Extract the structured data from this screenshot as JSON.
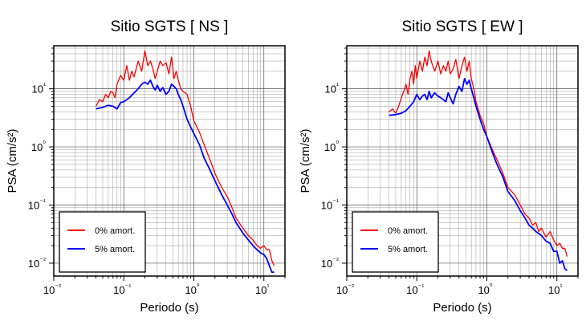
{
  "chart_data": [
    {
      "type": "line",
      "title": "Sitio SGTS [ NS ]",
      "xlabel": "Periodo (s)",
      "ylabel": "PSA (cm/s²)",
      "xscale": "log",
      "yscale": "log",
      "xlim": [
        0.01,
        20
      ],
      "ylim": [
        0.006,
        55
      ],
      "grid": true,
      "legend_position": "bottom-left",
      "x_tick_labels": [
        "10⁻²",
        "10⁻¹",
        "10⁰",
        "10¹"
      ],
      "y_tick_labels": [
        "10⁻²",
        "10⁻¹",
        "10⁰",
        "10¹"
      ],
      "series": [
        {
          "name": "0% amort.",
          "color": "#ff0000",
          "x": [
            0.04,
            0.045,
            0.05,
            0.055,
            0.06,
            0.065,
            0.07,
            0.075,
            0.08,
            0.09,
            0.1,
            0.11,
            0.12,
            0.13,
            0.14,
            0.15,
            0.16,
            0.18,
            0.2,
            0.22,
            0.24,
            0.26,
            0.28,
            0.3,
            0.33,
            0.36,
            0.4,
            0.44,
            0.48,
            0.52,
            0.56,
            0.6,
            0.65,
            0.7,
            0.8,
            0.9,
            1.0,
            1.2,
            1.4,
            1.7,
            2.0,
            2.5,
            3.0,
            3.5,
            4.0,
            5.0,
            6.0,
            7.0,
            8.0,
            9.0,
            10.0,
            11.0,
            12.0,
            13.0,
            14.0
          ],
          "y": [
            5.0,
            6.5,
            6.0,
            8.0,
            7.0,
            9.0,
            8.5,
            7.0,
            12.0,
            17.0,
            14.0,
            25.0,
            14.0,
            20.0,
            16.0,
            22.0,
            30.0,
            20.0,
            45.0,
            25.0,
            30.0,
            22.0,
            15.0,
            20.0,
            30.0,
            25.0,
            28.0,
            18.0,
            35.0,
            15.0,
            20.0,
            14.0,
            10.0,
            9.0,
            8.0,
            5.0,
            2.8,
            1.8,
            1.1,
            0.6,
            0.35,
            0.2,
            0.14,
            0.09,
            0.06,
            0.04,
            0.03,
            0.025,
            0.02,
            0.018,
            0.02,
            0.017,
            0.017,
            0.011,
            0.009
          ]
        },
        {
          "name": "5% amort.",
          "color": "#0000ff",
          "x": [
            0.04,
            0.05,
            0.06,
            0.07,
            0.08,
            0.09,
            0.1,
            0.12,
            0.14,
            0.16,
            0.18,
            0.2,
            0.22,
            0.24,
            0.26,
            0.28,
            0.3,
            0.33,
            0.36,
            0.4,
            0.44,
            0.48,
            0.52,
            0.56,
            0.6,
            0.65,
            0.7,
            0.8,
            0.9,
            1.0,
            1.2,
            1.4,
            1.7,
            2.0,
            2.5,
            3.0,
            3.5,
            4.0,
            5.0,
            6.0,
            7.0,
            8.0,
            9.0,
            10.0,
            11.0,
            12.0,
            13.0,
            14.0
          ],
          "y": [
            4.5,
            4.8,
            5.2,
            5.0,
            4.5,
            5.8,
            6.0,
            7.0,
            8.5,
            10.0,
            12.0,
            13.0,
            12.0,
            14.0,
            11.0,
            9.5,
            11.5,
            9.0,
            10.5,
            8.0,
            9.0,
            12.0,
            11.0,
            10.0,
            8.0,
            6.5,
            5.0,
            3.0,
            2.2,
            1.7,
            1.1,
            0.65,
            0.4,
            0.26,
            0.15,
            0.1,
            0.07,
            0.05,
            0.033,
            0.025,
            0.02,
            0.017,
            0.015,
            0.014,
            0.012,
            0.009,
            0.007,
            0.007
          ]
        }
      ]
    },
    {
      "type": "line",
      "title": "Sitio SGTS [ EW ]",
      "xlabel": "Periodo (s)",
      "ylabel": "PSA (cm/s²)",
      "xscale": "log",
      "yscale": "log",
      "xlim": [
        0.01,
        20
      ],
      "ylim": [
        0.006,
        55
      ],
      "grid": true,
      "legend_position": "bottom-left",
      "x_tick_labels": [
        "10⁻²",
        "10⁻¹",
        "10⁰",
        "10¹"
      ],
      "y_tick_labels": [
        "10⁻²",
        "10⁻¹",
        "10⁰",
        "10¹"
      ],
      "series": [
        {
          "name": "0% amort.",
          "color": "#ff0000",
          "x": [
            0.04,
            0.045,
            0.05,
            0.055,
            0.06,
            0.065,
            0.07,
            0.075,
            0.08,
            0.085,
            0.09,
            0.095,
            0.1,
            0.11,
            0.12,
            0.13,
            0.14,
            0.15,
            0.16,
            0.18,
            0.2,
            0.22,
            0.24,
            0.26,
            0.28,
            0.3,
            0.33,
            0.36,
            0.4,
            0.44,
            0.48,
            0.52,
            0.56,
            0.6,
            0.65,
            0.7,
            0.8,
            0.9,
            1.0,
            1.2,
            1.4,
            1.7,
            2.0,
            2.5,
            3.0,
            3.5,
            4.0,
            4.5,
            5.0,
            5.5,
            6.0,
            7.0,
            8.0,
            9.0,
            10.0,
            11.0,
            12.0,
            13.0,
            14.0
          ],
          "y": [
            4.0,
            4.5,
            3.8,
            5.0,
            7.0,
            9.0,
            12.0,
            8.0,
            15.0,
            20.0,
            12.0,
            25.0,
            15.0,
            30.0,
            20.0,
            35.0,
            25.0,
            45.0,
            30.0,
            20.0,
            30.0,
            18.0,
            25.0,
            20.0,
            30.0,
            18.0,
            22.0,
            32.0,
            15.0,
            25.0,
            35.0,
            20.0,
            30.0,
            15.0,
            10.0,
            6.0,
            3.5,
            2.5,
            1.5,
            0.9,
            0.6,
            0.35,
            0.2,
            0.15,
            0.1,
            0.07,
            0.06,
            0.045,
            0.05,
            0.035,
            0.04,
            0.028,
            0.035,
            0.025,
            0.02,
            0.022,
            0.018,
            0.018,
            0.013
          ]
        },
        {
          "name": "5% amort.",
          "color": "#0000ff",
          "x": [
            0.04,
            0.05,
            0.06,
            0.07,
            0.08,
            0.09,
            0.1,
            0.11,
            0.12,
            0.13,
            0.14,
            0.15,
            0.16,
            0.18,
            0.2,
            0.22,
            0.24,
            0.26,
            0.28,
            0.3,
            0.33,
            0.36,
            0.4,
            0.44,
            0.48,
            0.52,
            0.56,
            0.6,
            0.65,
            0.7,
            0.8,
            0.9,
            1.0,
            1.2,
            1.4,
            1.7,
            2.0,
            2.5,
            3.0,
            3.5,
            4.0,
            4.5,
            5.0,
            6.0,
            7.0,
            8.0,
            9.0,
            10.0,
            11.0,
            12.0,
            13.0,
            14.0
          ],
          "y": [
            3.5,
            3.6,
            3.8,
            4.2,
            5.0,
            6.0,
            8.0,
            6.5,
            7.5,
            8.0,
            6.5,
            9.0,
            7.0,
            8.5,
            7.5,
            7.0,
            6.5,
            6.0,
            8.5,
            7.0,
            5.5,
            8.0,
            11.0,
            9.0,
            15.0,
            12.0,
            14.0,
            10.0,
            7.0,
            5.0,
            3.0,
            2.0,
            1.5,
            0.8,
            0.5,
            0.3,
            0.17,
            0.12,
            0.08,
            0.06,
            0.045,
            0.04,
            0.035,
            0.03,
            0.024,
            0.022,
            0.016,
            0.016,
            0.01,
            0.011,
            0.008,
            0.0075
          ]
        }
      ]
    }
  ]
}
